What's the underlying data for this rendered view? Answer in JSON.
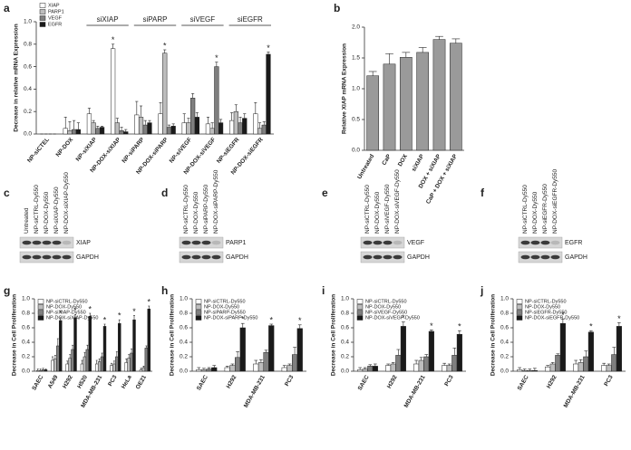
{
  "chart_data": [
    {
      "panel": "a",
      "type": "bar",
      "ylabel": "Decrease in relative mRNA Expression",
      "legend": "upper left",
      "categories": [
        "NP-siCTEL",
        "NP-DOX",
        "NP-siXIAP",
        "NP-DOX-siXIAP",
        "NP-siPARP",
        "NP-DOX-siPARP",
        "NP-siVEGF",
        "NP-DOX-siVEGF",
        "NP-siEGFR",
        "NP-DOX-siEGFR"
      ],
      "groups": [
        "siXIAP",
        "siPARP",
        "siVEGF",
        "siEGFR"
      ],
      "series": [
        {
          "name": "XIAP",
          "color": "#ffffff",
          "values": [
            0,
            0.05,
            0.18,
            0.76,
            0.17,
            0.18,
            0.1,
            0.09,
            0.12,
            0.18
          ],
          "errors": [
            0,
            0.1,
            0.05,
            0.04,
            0.12,
            0.1,
            0.08,
            0.06,
            0.07,
            0.1
          ],
          "significance": [
            null,
            null,
            null,
            "*",
            null,
            null,
            null,
            null,
            null,
            null
          ]
        },
        {
          "name": "PARP1",
          "color": "#bdbdbd",
          "values": [
            0,
            0.03,
            0.1,
            0.1,
            0.15,
            0.72,
            0.1,
            0.05,
            0.2,
            0.05
          ],
          "errors": [
            0,
            0.08,
            0.02,
            0.04,
            0.1,
            0.03,
            0.04,
            0.05,
            0.06,
            0.05
          ],
          "significance": [
            null,
            null,
            null,
            null,
            null,
            "*",
            null,
            null,
            null,
            null
          ]
        },
        {
          "name": "VEGF",
          "color": "#7f7f7f",
          "values": [
            0,
            0.04,
            0.05,
            0.03,
            0.08,
            0.06,
            0.32,
            0.6,
            0.1,
            0.08
          ],
          "errors": [
            0,
            0.08,
            0.02,
            0.03,
            0.04,
            0.02,
            0.04,
            0.04,
            0.05,
            0.03
          ],
          "significance": [
            null,
            null,
            null,
            null,
            null,
            null,
            null,
            "*",
            null,
            null
          ]
        },
        {
          "name": "EGFR",
          "color": "#1a1a1a",
          "values": [
            0,
            0.04,
            0.06,
            0.02,
            0.1,
            0.07,
            0.15,
            0.1,
            0.14,
            0.71
          ],
          "errors": [
            0,
            0.06,
            0.01,
            0.02,
            0.02,
            0.02,
            0.04,
            0.03,
            0.04,
            0.02
          ],
          "significance": [
            null,
            null,
            null,
            null,
            null,
            null,
            null,
            null,
            null,
            "*"
          ]
        }
      ],
      "ylim": [
        0,
        1
      ],
      "yticks": [
        {
          "value": 0,
          "label": "0.0"
        },
        {
          "value": 0.2,
          "label": "0.2"
        },
        {
          "value": 0.4,
          "label": "0.4"
        },
        {
          "value": 0.6,
          "label": "0.6"
        },
        {
          "value": 0.8,
          "label": "0.8"
        },
        {
          "value": 1,
          "label": "1.0"
        }
      ]
    },
    {
      "panel": "b",
      "type": "bar",
      "ylabel": "Relative XIAP mRNA Expression",
      "categories": [
        "Untreated",
        "CaP",
        "DOX",
        "siXIAP",
        "DOX + siXIAP",
        "CaP + DOX + siXIAP"
      ],
      "values": [
        1.21,
        1.4,
        1.51,
        1.59,
        1.8,
        1.74
      ],
      "errors": [
        0.07,
        0.17,
        0.08,
        0.08,
        0.05,
        0.07
      ],
      "color": "#9a9a9a",
      "ylim": [
        0,
        2
      ],
      "yticks": [
        {
          "value": 0,
          "label": "0.0"
        },
        {
          "value": 0.5,
          "label": "0.5"
        },
        {
          "value": 1,
          "label": "1.0"
        },
        {
          "value": 1.5,
          "label": "1.5"
        },
        {
          "value": 2,
          "label": "2.0"
        }
      ]
    },
    {
      "panel": "g",
      "type": "bar",
      "ylabel": "Decrease in Cell Proliferation",
      "legend": "upper left",
      "categories": [
        "SAEC",
        "A549",
        "H292",
        "H520",
        "MDA-MB-231",
        "PC3",
        "HeLa",
        "OE21"
      ],
      "series": [
        {
          "name": "NP-siCTRL-Dy550",
          "color": "#ffffff",
          "values": [
            0.01,
            0.15,
            0.1,
            0.1,
            0.1,
            0.08,
            0.12,
            0.02
          ],
          "errors": [
            0.02,
            0.05,
            0.04,
            0.05,
            0.05,
            0.03,
            0.05,
            0.02
          ]
        },
        {
          "name": "NP-DOX-Dy550",
          "color": "#bdbdbd",
          "values": [
            0.01,
            0.17,
            0.18,
            0.2,
            0.13,
            0.1,
            0.18,
            0.05
          ],
          "errors": [
            0.02,
            0.05,
            0.05,
            0.06,
            0.04,
            0.04,
            0.05,
            0.02
          ]
        },
        {
          "name": "NP-siXIAP-Dy550",
          "color": "#7f7f7f",
          "values": [
            0.02,
            0.35,
            0.3,
            0.3,
            0.2,
            0.2,
            0.25,
            0.32
          ],
          "errors": [
            0.02,
            0.1,
            0.06,
            0.06,
            0.05,
            0.07,
            0.06,
            0.03
          ]
        },
        {
          "name": "NP-DOX-siXIAP-Dy550",
          "color": "#1a1a1a",
          "values": [
            0.02,
            0.7,
            0.74,
            0.76,
            0.62,
            0.66,
            0.71,
            0.86
          ],
          "errors": [
            0.01,
            0.04,
            0.04,
            0.04,
            0.03,
            0.05,
            0.06,
            0.04
          ],
          "significance": [
            null,
            "*",
            "*",
            "*",
            "*",
            "*",
            "*",
            "*"
          ]
        }
      ],
      "ylim": [
        0,
        1
      ],
      "yticks": [
        {
          "value": 0,
          "label": "0.0"
        },
        {
          "value": 0.2,
          "label": "0.2"
        },
        {
          "value": 0.4,
          "label": "0.4"
        },
        {
          "value": 0.6,
          "label": "0.6"
        },
        {
          "value": 0.8,
          "label": "0.8"
        },
        {
          "value": 1,
          "label": "1.0"
        }
      ]
    },
    {
      "panel": "h",
      "type": "bar",
      "ylabel": "Decrease in Cell Proliferation",
      "legend": "upper left",
      "categories": [
        "SAEC",
        "H292",
        "MDA-MB-231",
        "PC3"
      ],
      "series": [
        {
          "name": "NP-siCTRL-Dy550",
          "color": "#ffffff",
          "values": [
            0.02,
            0.05,
            0.1,
            0.05
          ],
          "errors": [
            0.03,
            0.02,
            0.05,
            0.03
          ]
        },
        {
          "name": "NP-DOX-Dy550",
          "color": "#bdbdbd",
          "values": [
            0.02,
            0.08,
            0.12,
            0.08
          ],
          "errors": [
            0.02,
            0.02,
            0.04,
            0.02
          ]
        },
        {
          "name": "NP-siPARP-Dy550",
          "color": "#7f7f7f",
          "values": [
            0.03,
            0.19,
            0.26,
            0.23
          ],
          "errors": [
            0.02,
            0.08,
            0.03,
            0.1
          ]
        },
        {
          "name": "NP-DOX-siPARP-Dy550",
          "color": "#1a1a1a",
          "values": [
            0.05,
            0.6,
            0.63,
            0.59
          ],
          "errors": [
            0.03,
            0.06,
            0.02,
            0.05
          ],
          "significance": [
            null,
            "*",
            "*",
            "*"
          ]
        }
      ],
      "ylim": [
        0,
        1
      ],
      "yticks": [
        {
          "value": 0,
          "label": "0.0"
        },
        {
          "value": 0.2,
          "label": "0.2"
        },
        {
          "value": 0.4,
          "label": "0.4"
        },
        {
          "value": 0.6,
          "label": "0.6"
        },
        {
          "value": 0.8,
          "label": "0.8"
        },
        {
          "value": 1,
          "label": "1.0"
        }
      ]
    },
    {
      "panel": "i",
      "type": "bar",
      "ylabel": "Decrease in Cell Proliferation",
      "legend": "upper left",
      "categories": [
        "SAEC",
        "H292",
        "MDA-MB-231",
        "PC3"
      ],
      "series": [
        {
          "name": "NP-siCTRL-Dy550",
          "color": "#ffffff",
          "values": [
            0.02,
            0.08,
            0.1,
            0.08
          ],
          "errors": [
            0.03,
            0.02,
            0.05,
            0.03
          ]
        },
        {
          "name": "NP-DOX-Dy550",
          "color": "#bdbdbd",
          "values": [
            0.03,
            0.1,
            0.15,
            0.08
          ],
          "errors": [
            0.02,
            0.02,
            0.04,
            0.02
          ]
        },
        {
          "name": "NP-siVEGF-Dy550",
          "color": "#7f7f7f",
          "values": [
            0.07,
            0.22,
            0.2,
            0.22
          ],
          "errors": [
            0.02,
            0.08,
            0.03,
            0.1
          ]
        },
        {
          "name": "NP-DOX-siVEGF-Dy550",
          "color": "#1a1a1a",
          "values": [
            0.07,
            0.62,
            0.55,
            0.51
          ],
          "errors": [
            0.03,
            0.06,
            0.02,
            0.05
          ],
          "significance": [
            null,
            "*",
            "*",
            "*"
          ]
        }
      ],
      "ylim": [
        0,
        1
      ],
      "yticks": [
        {
          "value": 0,
          "label": "0.0"
        },
        {
          "value": 0.2,
          "label": "0.2"
        },
        {
          "value": 0.4,
          "label": "0.4"
        },
        {
          "value": 0.6,
          "label": "0.6"
        },
        {
          "value": 0.8,
          "label": "0.8"
        },
        {
          "value": 1,
          "label": "1.0"
        }
      ]
    },
    {
      "panel": "j",
      "type": "bar",
      "ylabel": "Decrease in Cell Proliferation",
      "legend": "upper left",
      "categories": [
        "SAEC",
        "H292",
        "MDA-MB-231",
        "PC3"
      ],
      "series": [
        {
          "name": "NP-siCTRL-Dy550",
          "color": "#ffffff",
          "values": [
            0.02,
            0.06,
            0.1,
            0.08
          ],
          "errors": [
            0.03,
            0.02,
            0.05,
            0.03
          ]
        },
        {
          "name": "NP-DOX-Dy550",
          "color": "#bdbdbd",
          "values": [
            0.01,
            0.1,
            0.12,
            0.08
          ],
          "errors": [
            0.02,
            0.02,
            0.04,
            0.02
          ]
        },
        {
          "name": "NP-siEGFR-Dy550",
          "color": "#7f7f7f",
          "values": [
            0.01,
            0.22,
            0.2,
            0.23
          ],
          "errors": [
            0.02,
            0.02,
            0.08,
            0.1
          ]
        },
        {
          "name": "NP-DOX-siEGFR-Dy550",
          "color": "#1a1a1a",
          "values": [
            0.01,
            0.66,
            0.54,
            0.62
          ],
          "errors": [
            0.03,
            0.06,
            0.02,
            0.05
          ],
          "significance": [
            null,
            "*",
            "*",
            "*"
          ]
        }
      ],
      "ylim": [
        0,
        1
      ],
      "yticks": [
        {
          "value": 0,
          "label": "0.0"
        },
        {
          "value": 0.2,
          "label": "0.2"
        },
        {
          "value": 0.4,
          "label": "0.4"
        },
        {
          "value": 0.6,
          "label": "0.6"
        },
        {
          "value": 0.8,
          "label": "0.8"
        },
        {
          "value": 1,
          "label": "1.0"
        }
      ]
    }
  ],
  "blots": [
    {
      "panel": "c",
      "lanes": [
        "Untreated",
        "NP-siCTRL-Dy550",
        "NP-DOX-Dy550",
        "NP-siXIAP-Dy550",
        "NP-DOX-siXIAP-Dy550"
      ],
      "bands": [
        "XIAP",
        "GAPDH"
      ]
    },
    {
      "panel": "d",
      "lanes": [
        "NP-siCTRL-Dy550",
        "NP-DOX-Dy550",
        "NP-siPARP-Dy550",
        "NP-DOX-siPARP-Dy550"
      ],
      "bands": [
        "PARP1",
        "GAPDH"
      ]
    },
    {
      "panel": "e",
      "lanes": [
        "NP-siCTRL-Dy550",
        "NP-DOX-Dy550",
        "NP-siVEGF-Dy550",
        "NP-DOX-siVEGF-Dy550"
      ],
      "bands": [
        "VEGF",
        "GAPDH"
      ]
    },
    {
      "panel": "f",
      "lanes": [
        "NP-siCTRL-Dy550",
        "NP-DOX-Dy550",
        "NP-siEGFR-Dy550",
        "NP-DOX-siEGFR-Dy550"
      ],
      "bands": [
        "EGFR",
        "GAPDH"
      ]
    }
  ]
}
